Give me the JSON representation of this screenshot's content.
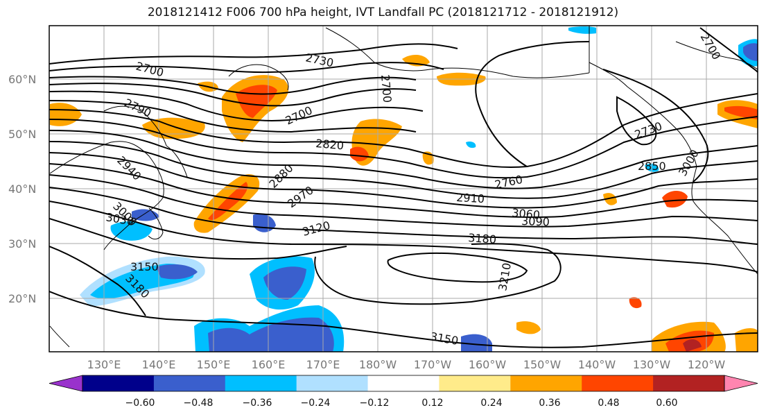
{
  "title": "2018121412 F006 700 hPa height, IVT Landfall PC (2018121712 - 2018121912)",
  "lat_labels": [
    "60°N",
    "50°N",
    "40°N",
    "30°N",
    "20°N"
  ],
  "lon_labels": [
    "130°E",
    "140°E",
    "150°E",
    "160°E",
    "170°E",
    "180°W",
    "170°W",
    "160°W",
    "150°W",
    "140°W",
    "130°W",
    "120°W"
  ],
  "colorbar": {
    "ticks": [
      "−0.60",
      "−0.48",
      "−0.36",
      "−0.24",
      "−0.12",
      "0.12",
      "0.24",
      "0.36",
      "0.48",
      "0.60"
    ],
    "colors": [
      "#9932cc",
      "#00008b",
      "#3a5fcd",
      "#00bfff",
      "#b0e0ff",
      "#ffffff",
      "#ffeb8a",
      "#ffa500",
      "#ff4500",
      "#b22222",
      "#ff85b0"
    ]
  },
  "contour_labels": [
    "2700",
    "2730",
    "2700",
    "2700",
    "2790",
    "2700",
    "2820",
    "2880",
    "2940",
    "2970",
    "3000",
    "3030",
    "2760",
    "2910",
    "3060",
    "3090",
    "3120",
    "3180",
    "3150",
    "3180",
    "3210",
    "3150",
    "2850",
    "2730",
    "3000"
  ]
}
